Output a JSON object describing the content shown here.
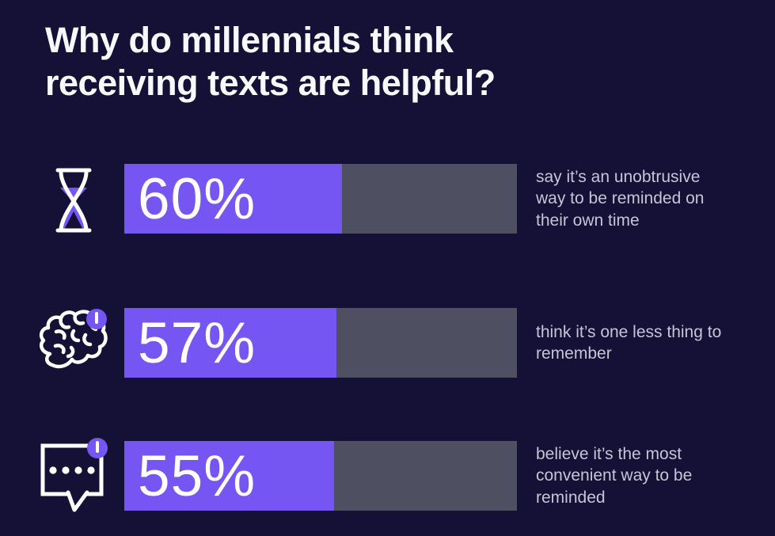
{
  "title": "Why do millennials think receiving texts are helpful?",
  "colors": {
    "background": "#141036",
    "bar_fill": "#7656f2",
    "bar_track": "#4e5062",
    "title_text": "#f8f8fc",
    "desc_text": "#c7c4d8",
    "value_text": "#ffffff",
    "badge": "#7656f2",
    "icon_stroke": "#ffffff"
  },
  "rows": [
    {
      "icon": "hourglass-icon",
      "value": "60%",
      "desc": "say it’s an unobtrusive way to be reminded on their own time",
      "fill_width": "55.4%"
    },
    {
      "icon": "brain-alert-icon",
      "value": "57%",
      "desc": "think it’s one less thing to remember",
      "fill_width": "54.0%"
    },
    {
      "icon": "chat-alert-icon",
      "value": "55%",
      "desc": "believe it’s the most convenient way to be reminded",
      "fill_width": "53.4%"
    }
  ],
  "chart_data": {
    "type": "bar",
    "orientation": "horizontal",
    "title": "Why do millennials think receiving texts are helpful?",
    "categories": [
      "say it’s an unobtrusive way to be reminded on their own time",
      "think it’s one less thing to remember",
      "believe it’s the most convenient way to be reminded"
    ],
    "values": [
      60,
      57,
      55
    ],
    "unit": "%",
    "xlim": [
      0,
      100
    ],
    "grid": false,
    "legend": false,
    "data_labels": "inside bar, left aligned",
    "icons": [
      "hourglass",
      "brain with alert badge",
      "chat bubble with alert badge"
    ]
  }
}
